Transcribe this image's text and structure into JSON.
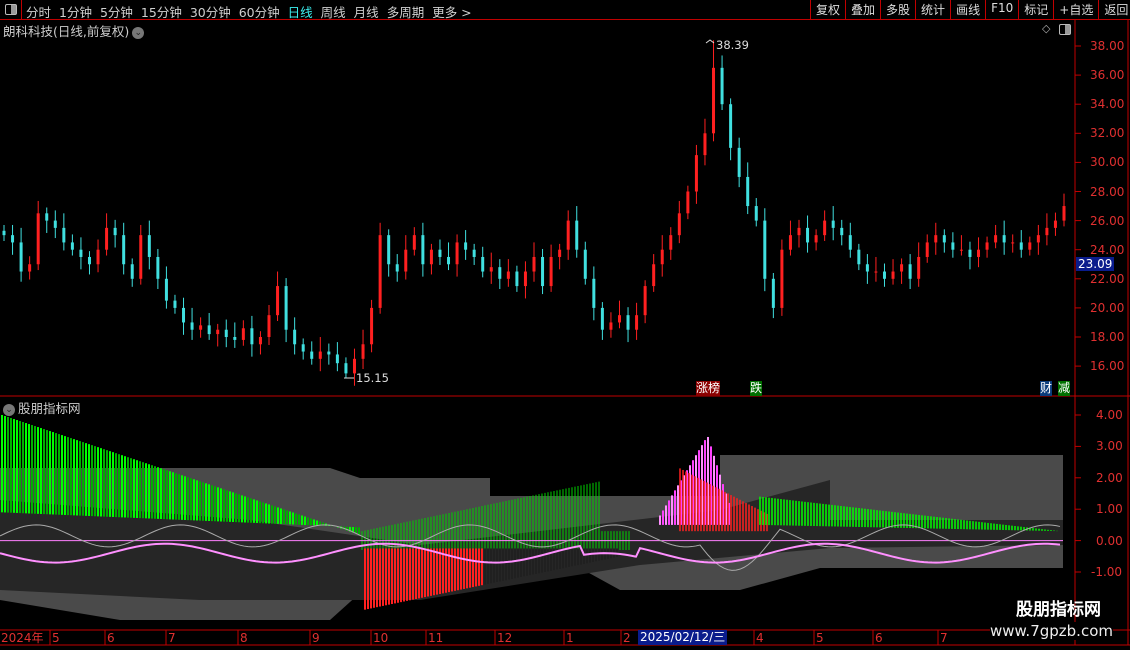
{
  "toolbar": {
    "periods": [
      "分时",
      "1分钟",
      "5分钟",
      "15分钟",
      "30分钟",
      "60分钟",
      "日线",
      "周线",
      "月线",
      "多周期",
      "更多 >"
    ],
    "active_period": "日线",
    "buttons": [
      "复权",
      "叠加",
      "多股",
      "统计",
      "画线",
      "F10",
      "标记",
      "+自选",
      "返回"
    ]
  },
  "stock": {
    "title": "朗科科技(日线,前复权)"
  },
  "price_axis": {
    "labels": [
      "38.00",
      "36.00",
      "34.00",
      "32.00",
      "30.00",
      "28.00",
      "26.00",
      "24.00",
      "22.00",
      "20.00",
      "18.00",
      "16.00"
    ],
    "current_price": "23.09"
  },
  "annotations": {
    "high": "38.39",
    "low": "15.15"
  },
  "tags": {
    "limit_up": "涨榜",
    "fall": "跌",
    "finance": "财",
    "extra": "减"
  },
  "indicator": {
    "title": "股朋指标网",
    "axis_labels": [
      "4.00",
      "3.00",
      "2.00",
      "1.00",
      "0.00",
      "-1.00"
    ]
  },
  "date_axis": {
    "labels": [
      "2024年",
      "5",
      "6",
      "7",
      "8",
      "9",
      "10",
      "11",
      "12",
      "1",
      "2",
      "4",
      "5",
      "6",
      "7"
    ],
    "cursor_date": "2025/02/12/三"
  },
  "watermark": {
    "name": "股朋指标网",
    "url": "www.7gpzb.com"
  },
  "colors": {
    "up": "#ff2020",
    "down": "#40e0e0",
    "grid": "#c00000",
    "active": "#3cf0f0"
  },
  "chart_data": {
    "type": "candlestick",
    "y_range": [
      15,
      39
    ],
    "high": 38.39,
    "low": 15.15,
    "closes": [
      25,
      24.5,
      22.5,
      23,
      26.5,
      26,
      25.5,
      24.5,
      24,
      23.5,
      23,
      24,
      25.5,
      25,
      23,
      22,
      25,
      23.5,
      22,
      20.5,
      20,
      19,
      18.5,
      18.8,
      18.2,
      18.5,
      18,
      17.8,
      18.6,
      17.5,
      18,
      19.5,
      21.5,
      18.5,
      17.5,
      17,
      16.5,
      17,
      16.8,
      16.2,
      15.5,
      16.5,
      17.5,
      20,
      25,
      23,
      22.5,
      24,
      25,
      23,
      24,
      23.5,
      23,
      24.5,
      24,
      23.5,
      22.5,
      22.8,
      22,
      22.5,
      21.5,
      22.5,
      23.5,
      21.5,
      23.5,
      24,
      26,
      24,
      22,
      20,
      18.5,
      19,
      19.5,
      18.5,
      19.5,
      21.5,
      23,
      24,
      25,
      26.5,
      28,
      30.5,
      32,
      36.5,
      34,
      31,
      29,
      27,
      26,
      22,
      20,
      24,
      25,
      25.5,
      24.5,
      25,
      26,
      25.5,
      25,
      24,
      23,
      22.5,
      22.5,
      22,
      22.5,
      23,
      22,
      23.5,
      24.5,
      25,
      24.5,
      24,
      24,
      23.5,
      24,
      24.5,
      25,
      24.5,
      24.5,
      24,
      24.5,
      25,
      25.5,
      26,
      27
    ]
  }
}
